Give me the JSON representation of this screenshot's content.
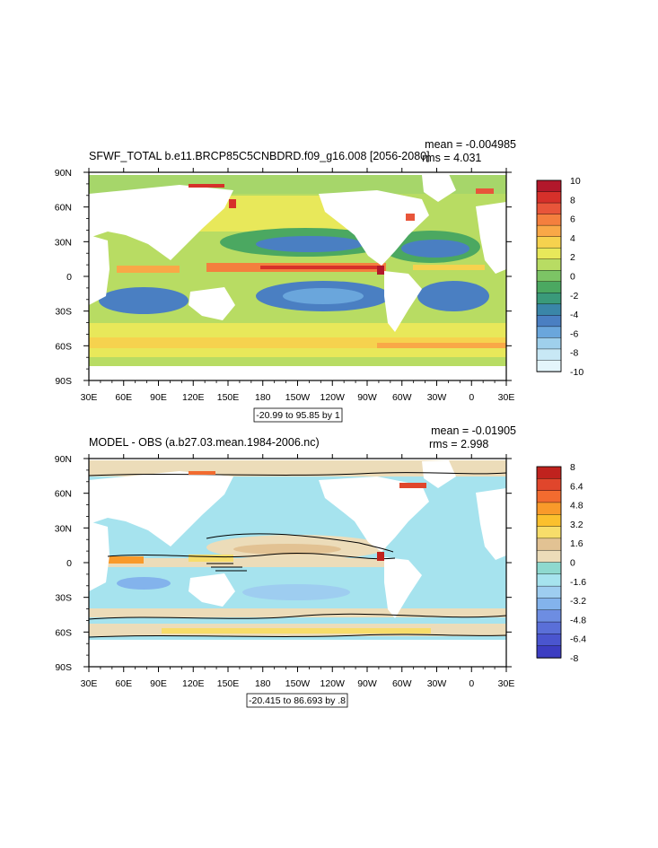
{
  "chart_data": [
    {
      "type": "heatmap",
      "title": "SFWF_TOTAL b.e11.BRCP85C5CNBDRD.f09_g16.008 [2056-2080]",
      "stats": {
        "mean": "mean = -0.004985",
        "rms": "rms = 4.031"
      },
      "x_ticks": [
        "30E",
        "60E",
        "90E",
        "120E",
        "150E",
        "180",
        "150W",
        "120W",
        "90W",
        "60W",
        "30W",
        "0",
        "30E"
      ],
      "y_ticks": [
        "90N",
        "60N",
        "30N",
        "0",
        "30S",
        "60S",
        "90S"
      ],
      "colorbar_labels": [
        "10",
        "8",
        "6",
        "4",
        "2",
        "0",
        "-2",
        "-4",
        "-6",
        "-8",
        "-10"
      ],
      "colorbar_colors": [
        "#b2182b",
        "#d6302a",
        "#e8553a",
        "#f47f3e",
        "#f9a847",
        "#f6d24e",
        "#e8e85a",
        "#b8dc63",
        "#7cc465",
        "#4ba861",
        "#3a9a7a",
        "#3a86a8",
        "#4a7fc2",
        "#6aa6dc",
        "#9fd0ec",
        "#c8e8f5",
        "#e4f5fb"
      ],
      "range_note": "-20.99 to 95.85 by 1",
      "ylim": [
        -90,
        90
      ]
    },
    {
      "type": "heatmap",
      "title": "MODEL - OBS (a.b27.03.mean.1984-2006.nc)",
      "stats": {
        "mean": "mean = -0.01905",
        "rms": "rms = 2.998"
      },
      "x_ticks": [
        "30E",
        "60E",
        "90E",
        "120E",
        "150E",
        "180",
        "150W",
        "120W",
        "90W",
        "60W",
        "30W",
        "0",
        "30E"
      ],
      "y_ticks": [
        "90N",
        "60N",
        "30N",
        "0",
        "30S",
        "60S",
        "90S"
      ],
      "colorbar_labels": [
        "8",
        "6.4",
        "4.8",
        "3.2",
        "1.6",
        "0",
        "-1.6",
        "-3.2",
        "-4.8",
        "-6.4",
        "-8"
      ],
      "colorbar_colors": [
        "#c0221e",
        "#e0462c",
        "#f26b2f",
        "#f99a2a",
        "#fbc02d",
        "#f7dd6a",
        "#e2c293",
        "#ecdcb9",
        "#8ed9cf",
        "#a6e3ee",
        "#9ecdf0",
        "#83b3ec",
        "#6d8de2",
        "#5a6fd8",
        "#4a55cf",
        "#3c3dc2"
      ],
      "range_note": "-20.415 to 86.693 by .8",
      "ylim": [
        -90,
        90
      ]
    }
  ]
}
